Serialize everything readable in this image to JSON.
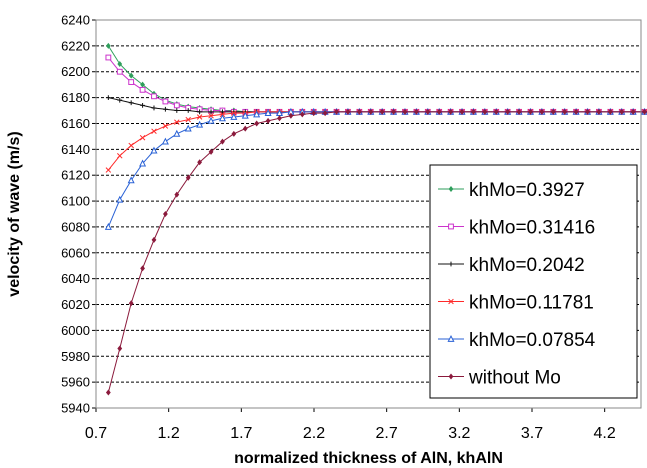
{
  "chart_data": {
    "type": "line",
    "xlabel": "normalized thickness of AlN, khAlN",
    "ylabel": "velocity of wave (m/s)",
    "xlim": [
      0.7,
      4.45
    ],
    "ylim": [
      5940,
      6240
    ],
    "xticks": [
      0.7,
      1.2,
      1.7,
      2.2,
      2.7,
      3.2,
      3.7,
      4.2
    ],
    "xtick_labels": [
      "0.7",
      "1.2",
      "1.7",
      "2.2",
      "2.7",
      "3.2",
      "3.7",
      "4.2"
    ],
    "yticks": [
      5940,
      5960,
      5980,
      6000,
      6020,
      6040,
      6060,
      6080,
      6100,
      6120,
      6140,
      6160,
      6180,
      6200,
      6220,
      6240
    ],
    "grid": "horizontal dashed",
    "legend_position": "right",
    "x_start": 0.785,
    "x_step": 0.0785,
    "series": [
      {
        "name": "khMo=0.3927",
        "color": "#2e9e5b",
        "marker": "diamond",
        "values": [
          6220,
          6206,
          6197,
          6190,
          6183,
          6178,
          6175,
          6173,
          6172,
          6171,
          6170,
          6170,
          6169,
          6169,
          6169,
          6169,
          6169,
          6169,
          6169,
          6169,
          6169,
          6169,
          6169,
          6169,
          6169,
          6169,
          6169,
          6169,
          6169,
          6169,
          6169,
          6169,
          6169,
          6169,
          6169,
          6169,
          6169,
          6169,
          6169,
          6169,
          6169,
          6169,
          6169,
          6169,
          6169,
          6169,
          6169,
          6169,
          6169
        ]
      },
      {
        "name": "khMo=0.31416",
        "color": "#cc33cc",
        "marker": "square",
        "values": [
          6211,
          6200,
          6192,
          6186,
          6181,
          6177,
          6174,
          6172,
          6171,
          6170,
          6170,
          6169,
          6169,
          6169,
          6169,
          6169,
          6169,
          6169,
          6169,
          6169,
          6169,
          6169,
          6169,
          6169,
          6169,
          6169,
          6169,
          6169,
          6169,
          6169,
          6169,
          6169,
          6169,
          6169,
          6169,
          6169,
          6169,
          6169,
          6169,
          6169,
          6169,
          6169,
          6169,
          6169,
          6169,
          6169,
          6169,
          6169,
          6169
        ]
      },
      {
        "name": "khMo=0.2042",
        "color": "#111111",
        "marker": "plus",
        "values": [
          6180,
          6178,
          6176,
          6174,
          6172,
          6171,
          6170,
          6170,
          6169,
          6169,
          6169,
          6169,
          6169,
          6169,
          6169,
          6169,
          6169,
          6169,
          6169,
          6169,
          6169,
          6169,
          6169,
          6169,
          6169,
          6169,
          6169,
          6169,
          6169,
          6169,
          6169,
          6169,
          6169,
          6169,
          6169,
          6169,
          6169,
          6169,
          6169,
          6169,
          6169,
          6169,
          6169,
          6169,
          6169,
          6169,
          6169,
          6169,
          6169
        ]
      },
      {
        "name": "khMo=0.11781",
        "color": "#ff2a2a",
        "marker": "cross",
        "values": [
          6124,
          6135,
          6143,
          6149,
          6154,
          6158,
          6161,
          6163,
          6165,
          6166,
          6167,
          6168,
          6168,
          6169,
          6169,
          6169,
          6169,
          6169,
          6169,
          6169,
          6169,
          6169,
          6169,
          6169,
          6169,
          6169,
          6169,
          6169,
          6169,
          6169,
          6169,
          6169,
          6169,
          6169,
          6169,
          6169,
          6169,
          6169,
          6169,
          6169,
          6169,
          6169,
          6169,
          6169,
          6169,
          6169,
          6169,
          6169,
          6169
        ]
      },
      {
        "name": "khMo=0.07854",
        "color": "#2a62d6",
        "marker": "triangle",
        "values": [
          6080,
          6101,
          6116,
          6129,
          6139,
          6146,
          6152,
          6156,
          6159,
          6162,
          6164,
          6165,
          6166,
          6167,
          6168,
          6168,
          6169,
          6169,
          6169,
          6169,
          6169,
          6169,
          6169,
          6169,
          6169,
          6169,
          6169,
          6169,
          6169,
          6169,
          6169,
          6169,
          6169,
          6169,
          6169,
          6169,
          6169,
          6169,
          6169,
          6169,
          6169,
          6169,
          6169,
          6169,
          6169,
          6169,
          6169,
          6169,
          6169
        ]
      },
      {
        "name": "without Mo",
        "color": "#8b1a3c",
        "marker": "diamond",
        "values": [
          5952,
          5986,
          6021,
          6048,
          6070,
          6090,
          6105,
          6118,
          6130,
          6138,
          6146,
          6152,
          6156,
          6160,
          6162,
          6164,
          6166,
          6167,
          6168,
          6168,
          6169,
          6169,
          6169,
          6169,
          6169,
          6169,
          6169,
          6169,
          6169,
          6169,
          6169,
          6169,
          6169,
          6169,
          6169,
          6169,
          6169,
          6169,
          6169,
          6169,
          6169,
          6169,
          6169,
          6169,
          6169,
          6169,
          6169,
          6169,
          6169
        ]
      }
    ]
  }
}
